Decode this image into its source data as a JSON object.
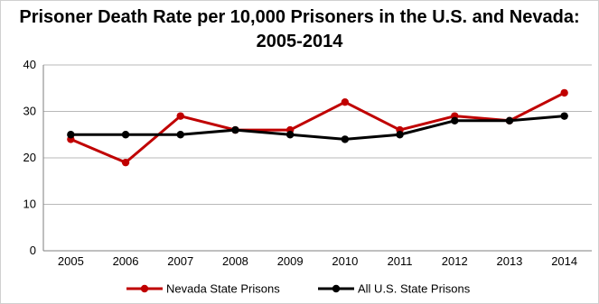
{
  "chart_data": {
    "type": "line",
    "title_line1": "Prisoner Death Rate per 10,000 Prisoners in the U.S. and Nevada:",
    "title_line2": "2005-2014",
    "categories": [
      "2005",
      "2006",
      "2007",
      "2008",
      "2009",
      "2010",
      "2011",
      "2012",
      "2013",
      "2014"
    ],
    "ylim": [
      0,
      40
    ],
    "yticks": [
      0,
      10,
      20,
      30,
      40
    ],
    "grid": true,
    "legend_position": "bottom",
    "series": [
      {
        "name": "Nevada State Prisons",
        "color": "#c00000",
        "values": [
          24,
          19,
          29,
          26,
          26,
          32,
          26,
          29,
          28,
          34
        ]
      },
      {
        "name": "All U.S. State Prisons",
        "color": "#000000",
        "values": [
          25,
          25,
          25,
          26,
          25,
          24,
          25,
          28,
          28,
          29
        ]
      }
    ]
  }
}
